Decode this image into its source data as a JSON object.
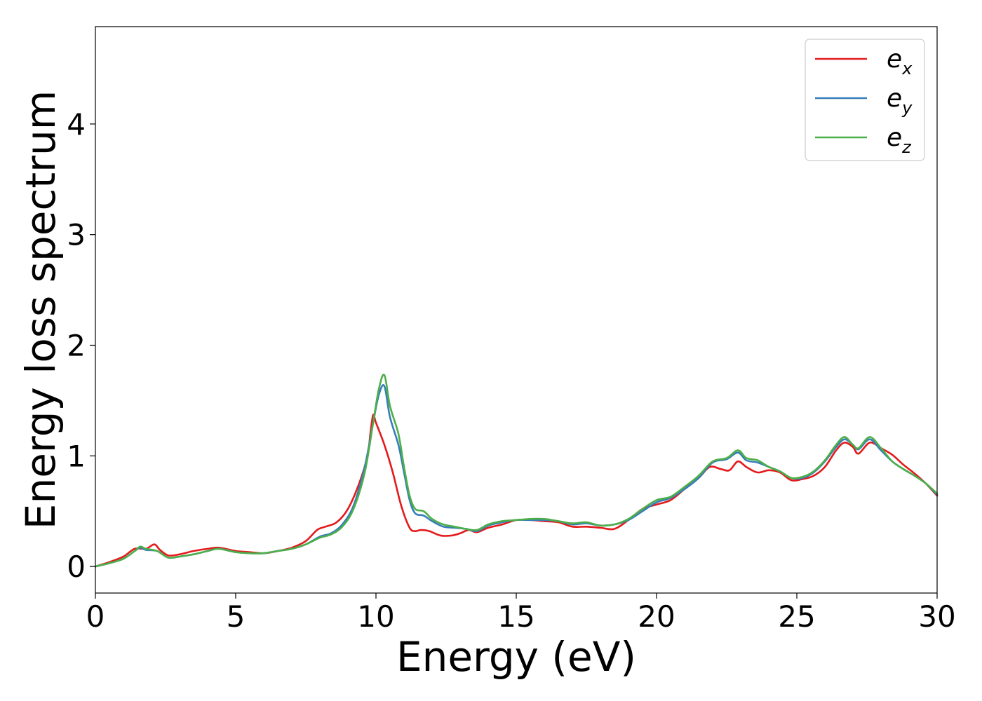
{
  "chart_data": {
    "type": "line",
    "xlabel": "Energy (eV)",
    "ylabel": "Energy loss spectrum",
    "xlim": [
      0,
      30
    ],
    "ylim": [
      -0.24,
      4.88
    ],
    "xticks": [
      0,
      5,
      10,
      15,
      20,
      25,
      30
    ],
    "yticks": [
      0,
      1,
      2,
      3,
      4
    ],
    "grid": false,
    "legend_position": "top-right",
    "series": [
      {
        "name": "e",
        "subscript": "x",
        "color": "#e41a1c",
        "x": [
          0,
          0.5,
          1.0,
          1.4,
          1.8,
          2.1,
          2.3,
          2.6,
          3.0,
          3.5,
          4.0,
          4.4,
          5.0,
          5.5,
          6.0,
          6.5,
          7.0,
          7.5,
          7.9,
          8.2,
          8.6,
          9.0,
          9.4,
          9.7,
          9.8,
          9.9,
          10.0,
          10.3,
          10.6,
          10.9,
          11.2,
          11.4,
          11.6,
          11.9,
          12.3,
          12.7,
          13.0,
          13.3,
          13.6,
          14.0,
          14.5,
          15.0,
          15.5,
          16.0,
          16.5,
          17.0,
          17.5,
          18.0,
          18.5,
          19.0,
          19.5,
          20.0,
          20.5,
          21.0,
          21.5,
          21.9,
          22.3,
          22.6,
          22.9,
          23.2,
          23.6,
          24.0,
          24.4,
          24.8,
          25.2,
          25.6,
          26.0,
          26.4,
          26.7,
          27.0,
          27.2,
          27.6,
          28.0,
          28.4,
          28.8,
          29.2,
          29.6,
          30.0
        ],
        "values": [
          0.0,
          0.04,
          0.09,
          0.16,
          0.16,
          0.2,
          0.15,
          0.1,
          0.11,
          0.14,
          0.16,
          0.17,
          0.14,
          0.13,
          0.12,
          0.14,
          0.17,
          0.23,
          0.33,
          0.36,
          0.4,
          0.52,
          0.75,
          1.0,
          1.2,
          1.37,
          1.3,
          1.1,
          0.85,
          0.55,
          0.35,
          0.32,
          0.33,
          0.32,
          0.28,
          0.28,
          0.3,
          0.33,
          0.31,
          0.35,
          0.38,
          0.42,
          0.42,
          0.41,
          0.4,
          0.36,
          0.36,
          0.35,
          0.34,
          0.42,
          0.52,
          0.56,
          0.6,
          0.7,
          0.8,
          0.9,
          0.88,
          0.87,
          0.95,
          0.9,
          0.85,
          0.87,
          0.85,
          0.78,
          0.79,
          0.82,
          0.9,
          1.05,
          1.12,
          1.08,
          1.02,
          1.12,
          1.07,
          1.01,
          0.92,
          0.84,
          0.75,
          0.64
        ]
      },
      {
        "name": "e",
        "subscript": "y",
        "color": "#377eb8",
        "x": [
          0,
          0.5,
          1.0,
          1.4,
          1.6,
          1.8,
          2.2,
          2.6,
          3.0,
          3.5,
          4.0,
          4.4,
          5.0,
          5.5,
          6.0,
          6.5,
          7.0,
          7.5,
          8.0,
          8.4,
          8.8,
          9.2,
          9.6,
          9.9,
          10.1,
          10.3,
          10.5,
          10.8,
          11.0,
          11.2,
          11.4,
          11.7,
          12.0,
          12.4,
          12.8,
          13.2,
          13.6,
          14.0,
          14.5,
          15.0,
          15.5,
          16.0,
          16.5,
          17.0,
          17.5,
          18.0,
          18.5,
          19.0,
          19.5,
          20.0,
          20.5,
          21.0,
          21.5,
          22.0,
          22.5,
          22.9,
          23.2,
          23.6,
          24.0,
          24.4,
          24.8,
          25.2,
          25.6,
          26.0,
          26.4,
          26.7,
          27.0,
          27.2,
          27.6,
          28.0,
          28.4,
          28.8,
          29.2,
          29.6,
          30.0
        ],
        "values": [
          0.0,
          0.03,
          0.07,
          0.14,
          0.17,
          0.15,
          0.14,
          0.08,
          0.09,
          0.11,
          0.14,
          0.16,
          0.13,
          0.12,
          0.12,
          0.14,
          0.16,
          0.2,
          0.27,
          0.3,
          0.38,
          0.55,
          0.9,
          1.3,
          1.55,
          1.63,
          1.35,
          1.1,
          0.85,
          0.6,
          0.48,
          0.46,
          0.41,
          0.36,
          0.35,
          0.34,
          0.32,
          0.37,
          0.4,
          0.42,
          0.42,
          0.42,
          0.41,
          0.38,
          0.39,
          0.37,
          0.38,
          0.42,
          0.5,
          0.58,
          0.62,
          0.7,
          0.8,
          0.94,
          0.97,
          1.03,
          0.96,
          0.94,
          0.9,
          0.86,
          0.8,
          0.8,
          0.85,
          0.95,
          1.08,
          1.15,
          1.1,
          1.06,
          1.15,
          1.05,
          0.95,
          0.88,
          0.82,
          0.75,
          0.65
        ]
      },
      {
        "name": "e",
        "subscript": "z",
        "color": "#4daf4a",
        "x": [
          0,
          0.5,
          1.0,
          1.4,
          1.6,
          1.8,
          2.2,
          2.6,
          3.0,
          3.5,
          4.0,
          4.4,
          5.0,
          5.5,
          6.0,
          6.5,
          7.0,
          7.5,
          8.0,
          8.4,
          8.8,
          9.2,
          9.6,
          9.9,
          10.1,
          10.3,
          10.5,
          10.8,
          11.0,
          11.2,
          11.4,
          11.7,
          12.0,
          12.4,
          12.8,
          13.2,
          13.6,
          14.0,
          14.5,
          15.0,
          15.5,
          16.0,
          16.5,
          17.0,
          17.5,
          18.0,
          18.5,
          19.0,
          19.5,
          20.0,
          20.5,
          21.0,
          21.5,
          22.0,
          22.5,
          22.9,
          23.2,
          23.6,
          24.0,
          24.4,
          24.8,
          25.2,
          25.6,
          26.0,
          26.4,
          26.7,
          27.0,
          27.2,
          27.6,
          28.0,
          28.4,
          28.8,
          29.2,
          29.6,
          30.0
        ],
        "values": [
          0.0,
          0.03,
          0.07,
          0.14,
          0.18,
          0.16,
          0.14,
          0.08,
          0.09,
          0.11,
          0.14,
          0.16,
          0.13,
          0.12,
          0.12,
          0.14,
          0.16,
          0.2,
          0.26,
          0.29,
          0.36,
          0.52,
          0.85,
          1.3,
          1.6,
          1.73,
          1.45,
          1.2,
          0.9,
          0.64,
          0.52,
          0.5,
          0.43,
          0.38,
          0.36,
          0.34,
          0.33,
          0.38,
          0.41,
          0.42,
          0.43,
          0.43,
          0.41,
          0.39,
          0.4,
          0.37,
          0.38,
          0.43,
          0.52,
          0.6,
          0.63,
          0.72,
          0.82,
          0.95,
          0.98,
          1.05,
          0.98,
          0.96,
          0.9,
          0.86,
          0.8,
          0.81,
          0.86,
          0.96,
          1.1,
          1.17,
          1.1,
          1.07,
          1.17,
          1.07,
          0.95,
          0.88,
          0.82,
          0.75,
          0.66
        ]
      }
    ]
  }
}
